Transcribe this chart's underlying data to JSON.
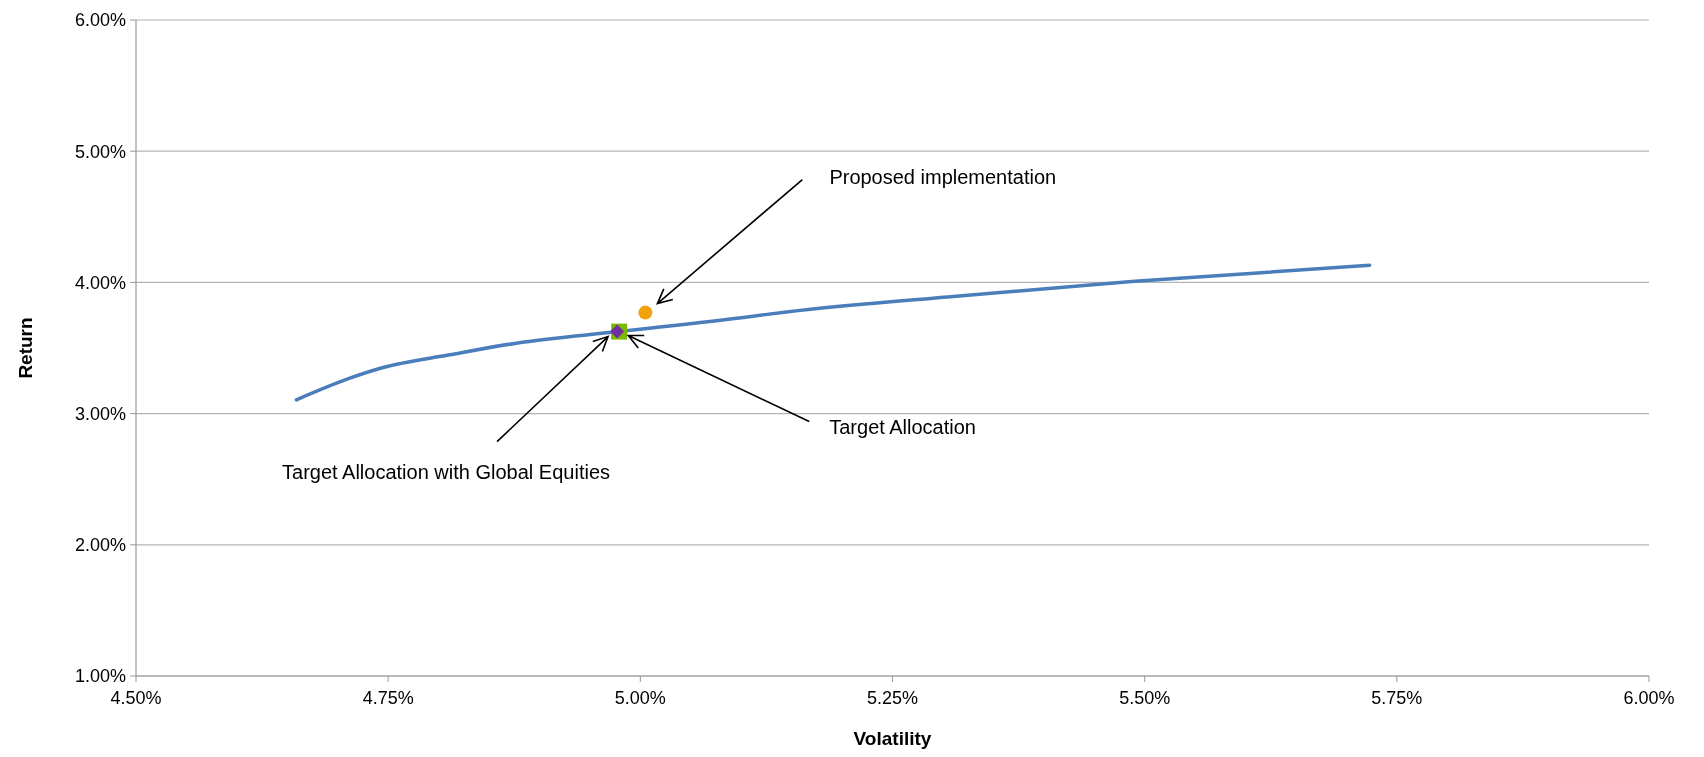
{
  "chart_data": {
    "type": "line",
    "xlabel": "Volatility",
    "ylabel": "Return",
    "xlim": [
      4.5,
      6
    ],
    "ylim": [
      1,
      6
    ],
    "xticks": [
      {
        "value": 4.5,
        "label": "4.50%"
      },
      {
        "value": 4.75,
        "label": "4.75%"
      },
      {
        "value": 5,
        "label": "5.00%"
      },
      {
        "value": 5.25,
        "label": "5.25%"
      },
      {
        "value": 5.5,
        "label": "5.50%"
      },
      {
        "value": 5.75,
        "label": "5.75%"
      },
      {
        "value": 6,
        "label": "6.00%"
      }
    ],
    "yticks": [
      {
        "value": 1,
        "label": "1.00%"
      },
      {
        "value": 2,
        "label": "2.00%"
      },
      {
        "value": 3,
        "label": "3.00%"
      },
      {
        "value": 4,
        "label": "4.00%"
      },
      {
        "value": 5,
        "label": "5.00%"
      },
      {
        "value": 6,
        "label": "6.00%"
      }
    ],
    "grid": "y",
    "series": [
      {
        "color": "#4a7ebb",
        "marker": "none",
        "x": [
          4.659,
          4.712,
          4.745,
          4.811,
          4.877,
          4.978,
          5.108,
          5.145,
          5.316,
          5.487,
          5.723
        ],
        "values": [
          3.105,
          3.27,
          3.351,
          3.448,
          3.537,
          3.625,
          3.739,
          3.775,
          3.897,
          4.006,
          4.131
        ]
      },
      {
        "type": "scatter",
        "color": "#f0a30a",
        "marker": "circle",
        "x": [
          5.005
        ],
        "values": [
          3.77
        ]
      },
      {
        "type": "scatter",
        "color": "#7ab800",
        "marker": "square",
        "x": [
          4.979
        ],
        "values": [
          3.625
        ]
      },
      {
        "type": "scatter",
        "color": "#7030a0",
        "marker": "diamond",
        "x": [
          4.977
        ],
        "values": [
          3.625
        ]
      }
    ],
    "annotations": [
      "Proposed implementation",
      {
        "text": "Target Allocation",
        "x": 4.988,
        "y": 3.595
      },
      {
        "text": "Target Allocation with Global Equities",
        "x": 4.968,
        "y": 3.587
      }
    ]
  }
}
